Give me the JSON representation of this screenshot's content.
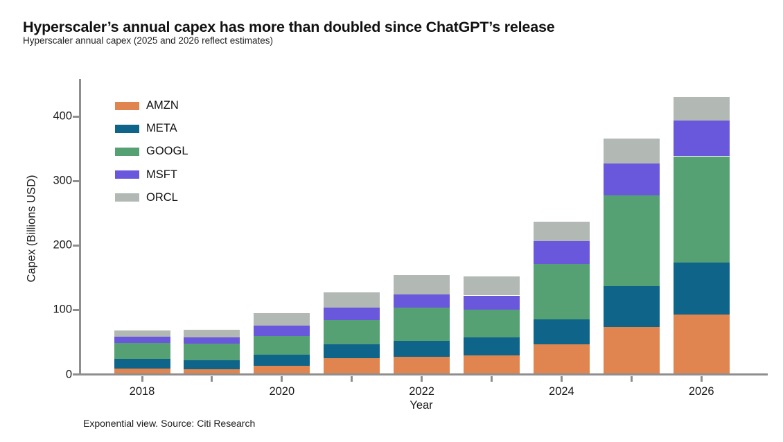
{
  "header": {
    "title": "Hyperscaler’s annual capex has more than doubled since ChatGPT’s release",
    "subtitle": "Hyperscaler annual capex (2025 and 2026 reflect estimates)"
  },
  "footer": {
    "note": "Exponential view. Source: Citi Research"
  },
  "axes": {
    "ylabel": "Capex (Billions USD)",
    "xlabel": "Year"
  },
  "chart_data": {
    "type": "bar",
    "stacked": true,
    "title": "Hyperscaler’s annual capex has more than doubled since ChatGPT’s release",
    "subtitle": "Hyperscaler annual capex (2025 and 2026 reflect estimates)",
    "xlabel": "Year",
    "ylabel": "Capex (Billions USD)",
    "categories": [
      2018,
      2019,
      2020,
      2021,
      2022,
      2023,
      2024,
      2025,
      2026
    ],
    "series": [
      {
        "name": "AMZN",
        "color": "#E0854F",
        "values": [
          11,
          10,
          15,
          27,
          29,
          31,
          48,
          75,
          95
        ]
      },
      {
        "name": "META",
        "color": "#0F6489",
        "values": [
          15,
          14,
          17,
          21,
          25,
          28,
          39,
          64,
          80
        ]
      },
      {
        "name": "GOOGL",
        "color": "#55A173",
        "values": [
          24,
          25,
          29,
          38,
          51,
          43,
          86,
          140,
          165
        ]
      },
      {
        "name": "MSFT",
        "color": "#6A58DC",
        "values": [
          10,
          10,
          16,
          19,
          21,
          22,
          35,
          50,
          55
        ]
      },
      {
        "name": "ORCL",
        "color": "#B2B9B4",
        "values": [
          10,
          12,
          20,
          24,
          30,
          30,
          30,
          38,
          37
        ]
      }
    ],
    "totals": [
      70,
      71,
      97,
      129,
      156,
      154,
      238,
      367,
      432
    ],
    "ylim": [
      0,
      450
    ],
    "yticks": [
      0,
      100,
      200,
      300,
      400
    ],
    "xtick_labels": [
      "2018",
      "2020",
      "2022",
      "2024",
      "2026"
    ],
    "legend_position": "upper-left",
    "grid": false,
    "axis_color": "#8e8e8e"
  }
}
